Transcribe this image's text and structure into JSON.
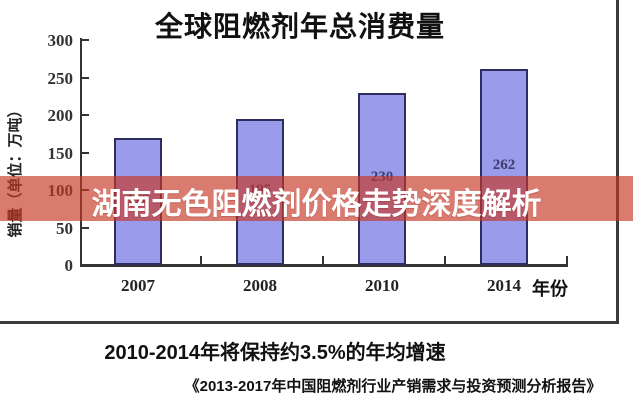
{
  "banner": {
    "title": "湖南无色阻燃剂价格走势深度解析",
    "bg_rgba": "rgba(199,55,38,0.66)",
    "bg_hex": "#c73726",
    "text_color": "#ffffff"
  },
  "chart_data": {
    "type": "bar",
    "title": "全球阻燃剂年总消费量",
    "categories": [
      "2007",
      "2008",
      "2010",
      "2014"
    ],
    "values": [
      170,
      195,
      230,
      262
    ],
    "xlabel": "年份",
    "ylabel": "销量（单位：万吨）",
    "yticks": [
      0,
      50,
      100,
      150,
      200,
      250,
      300
    ],
    "ylim": [
      0,
      300
    ],
    "grid": false,
    "legend": "none",
    "bar_color": "#9b9beb",
    "bar_border_color": "#2e2e5e",
    "bar_label_color": "#3c3c6e",
    "axis_color": "#333333"
  },
  "footer": {
    "growth_note": "2010-2014年将保持约3.5%的年均增速",
    "source": "《2013-2017年中国阻燃剂行业产销需求与投资预测分析报告》"
  }
}
